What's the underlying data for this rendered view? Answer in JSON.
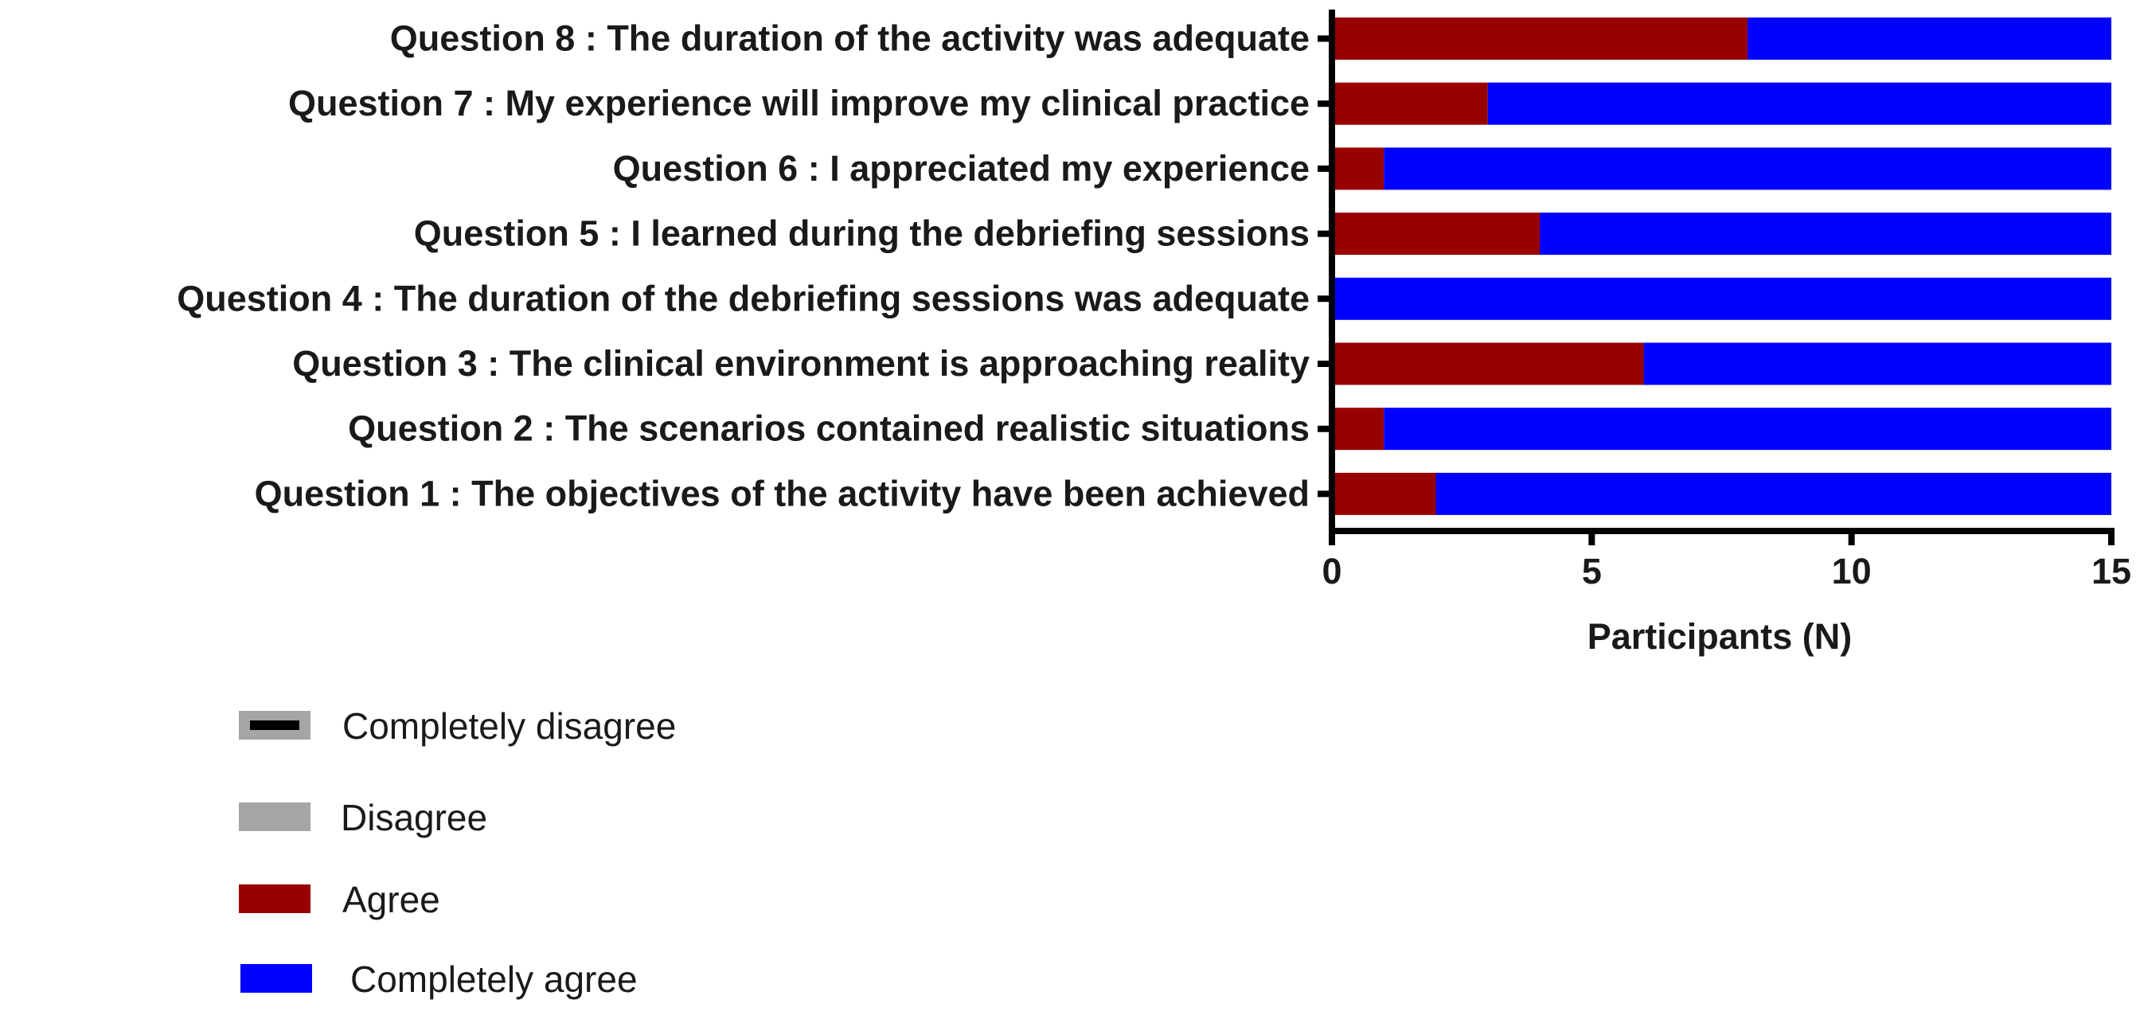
{
  "chart_data": {
    "type": "bar",
    "orientation": "horizontal",
    "stacked": true,
    "categories": [
      "Question 8 : The duration of the activity was adequate",
      "Question 7 :  My experience will improve my clinical practice",
      "Question 6 :  I appreciated my experience",
      "Question 5 : I learned during the debriefing sessions",
      "Question 4 : The duration of the debriefing sessions was adequate",
      "Question 3 : The clinical environment is approaching reality",
      "Question 2 : The scenarios contained realistic situations ",
      "Question 1 : The objectives of the activity have been achieved"
    ],
    "series": [
      {
        "name": "Completely disagree",
        "color": "#000000",
        "values": [
          0,
          0,
          0,
          0,
          0,
          0,
          0,
          0
        ]
      },
      {
        "name": "Disagree",
        "color": "#a5a5a8",
        "values": [
          0,
          0,
          0,
          0,
          0,
          0,
          0,
          0
        ]
      },
      {
        "name": "Agree",
        "color": "#990000",
        "values": [
          8,
          3,
          1,
          4,
          0,
          6,
          1,
          2
        ]
      },
      {
        "name": "Completely agree",
        "color": "#0000ff",
        "values": [
          7,
          12,
          14,
          11,
          15,
          9,
          14,
          13
        ]
      }
    ],
    "xlabel": "Participants (N)",
    "ylabel": "",
    "xlim": [
      0,
      15
    ],
    "xticks": [
      "0",
      "5",
      "10",
      "15"
    ],
    "grid": false,
    "legend_position": "bottom-left"
  }
}
